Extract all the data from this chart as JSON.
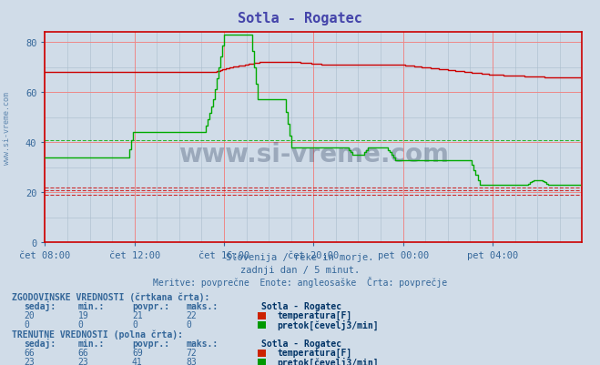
{
  "title": "Sotla - Rogatec",
  "title_color": "#4444aa",
  "bg_color": "#d0dce8",
  "plot_bg_color": "#d0dce8",
  "xlim": [
    0,
    288
  ],
  "ylim": [
    0,
    84
  ],
  "yticks": [
    0,
    20,
    40,
    60,
    80
  ],
  "xtick_labels": [
    "čet 08:00",
    "čet 12:00",
    "čet 16:00",
    "čet 20:00",
    "pet 00:00",
    "pet 04:00"
  ],
  "xtick_positions": [
    0,
    48,
    96,
    144,
    192,
    240
  ],
  "subtitle1": "Slovenija / reke in morje.",
  "subtitle2": "zadnji dan / 5 minut.",
  "subtitle3": "Meritve: povprečne  Enote: angleosaške  Črta: povprečje",
  "text_color": "#336699",
  "watermark": "www.si-vreme.com",
  "temp_color": "#cc0000",
  "flow_color": "#00aa00",
  "temp_avg_hist": 21,
  "temp_min_hist": 19,
  "temp_max_hist": 22,
  "flow_avg_hist": 41,
  "hist_temp_sedaj": 20,
  "hist_temp_min": 19,
  "hist_temp_povpr": 21,
  "hist_temp_maks": 22,
  "hist_flow_sedaj": 0,
  "hist_flow_min": 0,
  "hist_flow_povpr": 0,
  "hist_flow_maks": 0,
  "cur_temp_sedaj": 66,
  "cur_temp_min": 66,
  "cur_temp_povpr": 69,
  "cur_temp_maks": 72,
  "cur_flow_sedaj": 23,
  "cur_flow_min": 23,
  "cur_flow_povpr": 41,
  "cur_flow_maks": 83,
  "left_label": "www.si-vreme.com"
}
